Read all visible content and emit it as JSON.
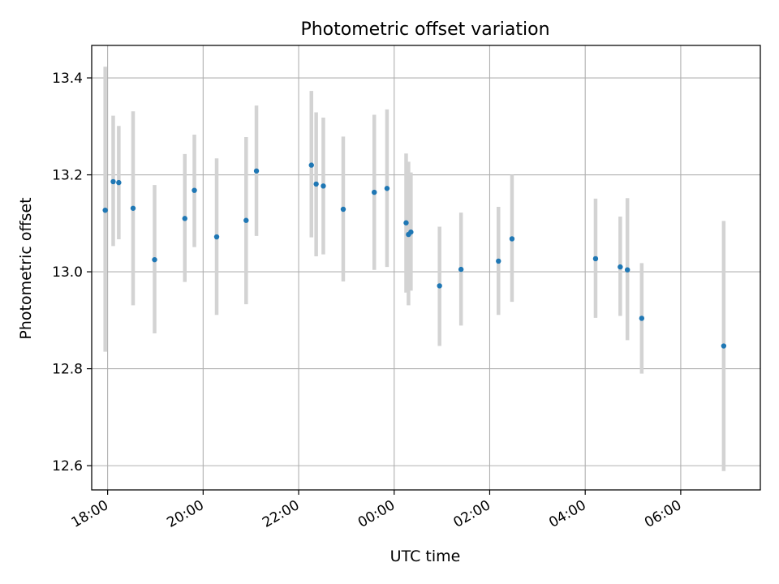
{
  "chart_data": {
    "type": "scatter",
    "title": "Photometric offset variation",
    "xlabel": "UTC time",
    "ylabel": "Photometric offset",
    "x_axis_type": "time",
    "xlim": [
      "17:40",
      "07:40"
    ],
    "ylim": [
      12.55,
      13.467
    ],
    "x_ticks": [
      "18:00",
      "20:00",
      "22:00",
      "00:00",
      "02:00",
      "04:00",
      "06:00"
    ],
    "y_ticks": [
      "12.6",
      "12.8",
      "13.0",
      "13.2",
      "13.4"
    ],
    "grid": true,
    "colors": {
      "point": "#1f77b4",
      "errorbar": "#d3d3d3",
      "grid": "#b0b0b0"
    },
    "points": [
      {
        "x": "17:57",
        "y": 13.127,
        "ylow": 12.835,
        "yhigh": 13.423
      },
      {
        "x": "18:07",
        "y": 13.186,
        "ylow": 13.053,
        "yhigh": 13.322
      },
      {
        "x": "18:14",
        "y": 13.184,
        "ylow": 13.067,
        "yhigh": 13.301
      },
      {
        "x": "18:32",
        "y": 13.131,
        "ylow": 12.931,
        "yhigh": 13.331
      },
      {
        "x": "18:59",
        "y": 13.025,
        "ylow": 12.873,
        "yhigh": 13.179
      },
      {
        "x": "19:37",
        "y": 13.11,
        "ylow": 12.979,
        "yhigh": 13.243
      },
      {
        "x": "19:49",
        "y": 13.168,
        "ylow": 13.051,
        "yhigh": 13.283
      },
      {
        "x": "20:17",
        "y": 13.072,
        "ylow": 12.911,
        "yhigh": 13.234
      },
      {
        "x": "20:54",
        "y": 13.106,
        "ylow": 12.933,
        "yhigh": 13.278
      },
      {
        "x": "21:07",
        "y": 13.208,
        "ylow": 13.074,
        "yhigh": 13.343
      },
      {
        "x": "22:16",
        "y": 13.22,
        "ylow": 13.071,
        "yhigh": 13.373
      },
      {
        "x": "22:22",
        "y": 13.181,
        "ylow": 13.032,
        "yhigh": 13.329
      },
      {
        "x": "22:31",
        "y": 13.177,
        "ylow": 13.036,
        "yhigh": 13.318
      },
      {
        "x": "22:56",
        "y": 13.129,
        "ylow": 12.98,
        "yhigh": 13.279
      },
      {
        "x": "23:35",
        "y": 13.164,
        "ylow": 13.004,
        "yhigh": 13.324
      },
      {
        "x": "23:51",
        "y": 13.172,
        "ylow": 13.01,
        "yhigh": 13.335
      },
      {
        "x": "00:15",
        "y": 13.101,
        "ylow": 12.957,
        "yhigh": 13.244
      },
      {
        "x": "00:18",
        "y": 13.077,
        "ylow": 12.931,
        "yhigh": 13.227
      },
      {
        "x": "00:21",
        "y": 13.082,
        "ylow": 12.961,
        "yhigh": 13.205
      },
      {
        "x": "00:57",
        "y": 12.971,
        "ylow": 12.847,
        "yhigh": 13.093
      },
      {
        "x": "01:24",
        "y": 13.005,
        "ylow": 12.889,
        "yhigh": 13.122
      },
      {
        "x": "02:11",
        "y": 13.022,
        "ylow": 12.911,
        "yhigh": 13.134
      },
      {
        "x": "02:28",
        "y": 13.068,
        "ylow": 12.938,
        "yhigh": 13.2
      },
      {
        "x": "04:13",
        "y": 13.027,
        "ylow": 12.905,
        "yhigh": 13.151
      },
      {
        "x": "04:44",
        "y": 13.01,
        "ylow": 12.909,
        "yhigh": 13.114
      },
      {
        "x": "04:53",
        "y": 13.004,
        "ylow": 12.859,
        "yhigh": 13.152
      },
      {
        "x": "05:11",
        "y": 12.904,
        "ylow": 12.79,
        "yhigh": 13.018
      },
      {
        "x": "06:54",
        "y": 12.847,
        "ylow": 12.589,
        "yhigh": 13.105
      }
    ]
  }
}
